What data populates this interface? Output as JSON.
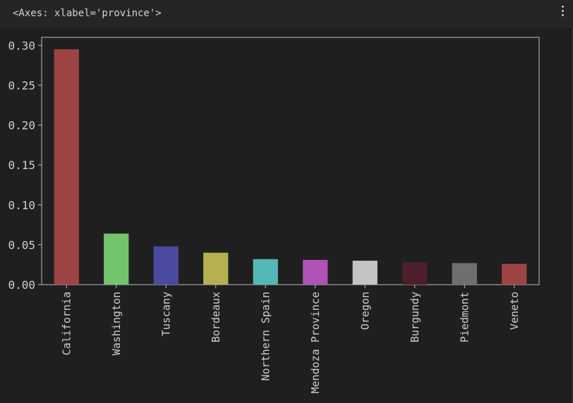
{
  "output": {
    "repr": "<Axes: xlabel='province'>"
  },
  "colors": {
    "background": "#1f1f1f",
    "axes": "#bdbdbd",
    "text": "#cfcfcf"
  },
  "chart_data": {
    "type": "bar",
    "xlabel": "province",
    "ylabel": "",
    "title": "",
    "ylim": [
      0,
      0.31
    ],
    "yticks": [
      "0.00",
      "0.05",
      "0.10",
      "0.15",
      "0.20",
      "0.25",
      "0.30"
    ],
    "yticks_values": [
      0,
      0.05,
      0.1,
      0.15,
      0.2,
      0.25,
      0.3
    ],
    "grid": false,
    "legend": "none",
    "categories": [
      "California",
      "Washington",
      "Tuscany",
      "Bordeaux",
      "Northern Spain",
      "Mendoza Province",
      "Oregon",
      "Burgundy",
      "Piedmont",
      "Veneto"
    ],
    "values": [
      0.295,
      0.064,
      0.048,
      0.04,
      0.032,
      0.031,
      0.03,
      0.028,
      0.027,
      0.026
    ],
    "bar_colors": [
      "#9f4444",
      "#72c46e",
      "#4a4a9e",
      "#b6b150",
      "#55b8b8",
      "#b052b8",
      "#c4c4c4",
      "#4c1f2b",
      "#6f6f6f",
      "#9f4444"
    ]
  }
}
